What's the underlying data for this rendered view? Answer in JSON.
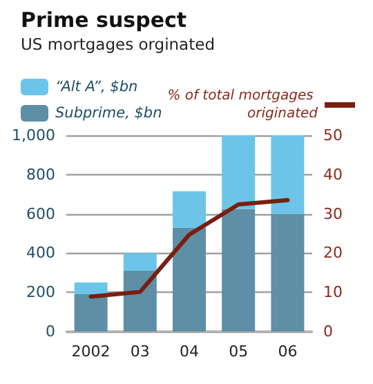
{
  "chart_data": {
    "type": "bar",
    "title": "Prime suspect",
    "subtitle": "US mortgages orginated",
    "categories": [
      "2002",
      "03",
      "04",
      "05",
      "06"
    ],
    "stacked": true,
    "series": [
      {
        "name": "Subprime, $bn",
        "color": "#5d8fa6",
        "values": [
          190,
          310,
          530,
          625,
          600
        ]
      },
      {
        "name": "“Alt A”, $bn",
        "color": "#6cc5e9",
        "values": [
          60,
          90,
          185,
          375,
          400
        ]
      },
      {
        "name": "% of total mortgages originated",
        "type": "line",
        "axis": "y2",
        "color": "#7a1e10",
        "values": [
          8.9,
          10.1,
          24.7,
          32.4,
          33.5
        ],
        "marker": "none"
      }
    ],
    "ylim": [
      0,
      1000
    ],
    "yticks": [
      0,
      200,
      400,
      600,
      800,
      {
        "value": 1000,
        "label": "1,000"
      }
    ],
    "y2lim": [
      0,
      50
    ],
    "y2ticks": [
      0,
      10,
      20,
      30,
      40,
      50
    ],
    "grid": "y",
    "legend": "top"
  }
}
